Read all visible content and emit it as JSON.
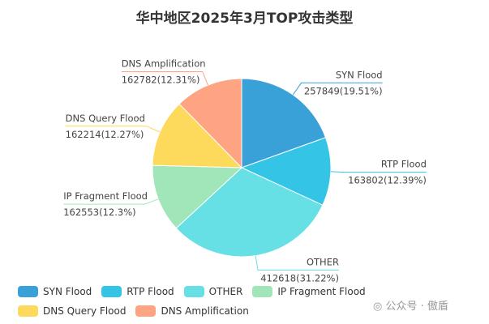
{
  "chart_data": {
    "type": "pie",
    "title": "华中地区2025年3月TOP攻击类型",
    "slices": [
      {
        "name": "SYN Flood",
        "value": 257849,
        "percent": "19.51%",
        "color": "#3aa0d8"
      },
      {
        "name": "RTP Flood",
        "value": 163802,
        "percent": "12.39%",
        "color": "#33c4e6"
      },
      {
        "name": "OTHER",
        "value": 412618,
        "percent": "31.22%",
        "color": "#66dfe5"
      },
      {
        "name": "IP Fragment Flood",
        "value": 162553,
        "percent": "12.3%",
        "color": "#a0e6b9"
      },
      {
        "name": "DNS Query Flood",
        "value": 162214,
        "percent": "12.27%",
        "color": "#fdd95c"
      },
      {
        "name": "DNS Amplification",
        "value": 162782,
        "percent": "12.31%",
        "color": "#fea482"
      }
    ],
    "legend_position": "bottom"
  },
  "watermark": "公众号 · 傲盾"
}
